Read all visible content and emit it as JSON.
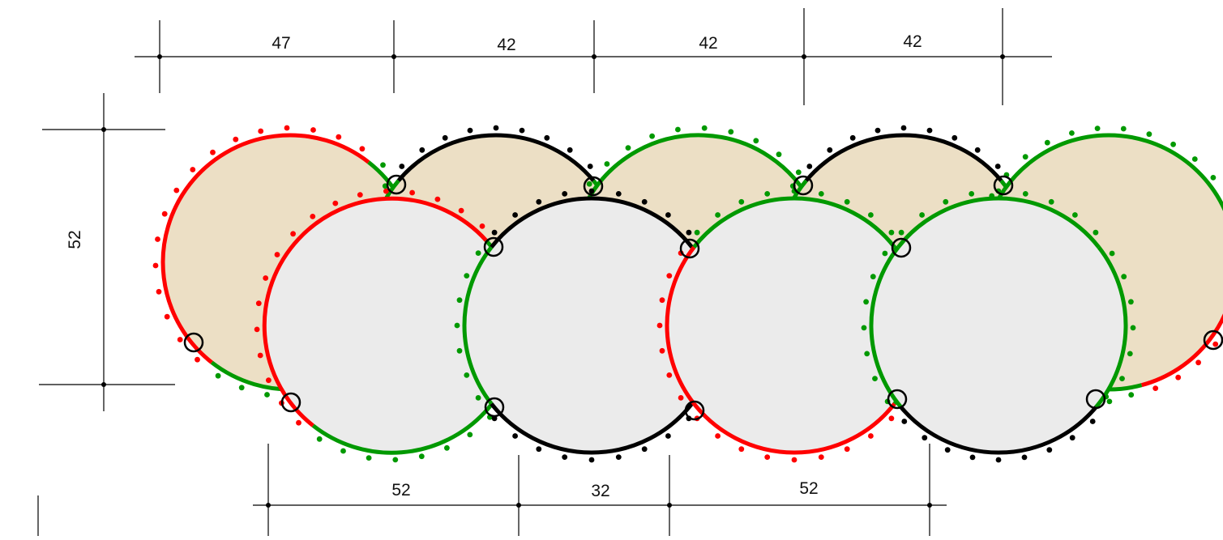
{
  "colors": {
    "red": "#ff0000",
    "black": "#000000",
    "green": "#009900",
    "back_fill": "#ecdfc5",
    "front_fill": "#ebebeb",
    "dim_line": "#000000"
  },
  "dimensions": {
    "top": [
      "47",
      "42",
      "42",
      "42"
    ],
    "left": "52",
    "bottom": [
      "52",
      "32",
      "52"
    ]
  }
}
